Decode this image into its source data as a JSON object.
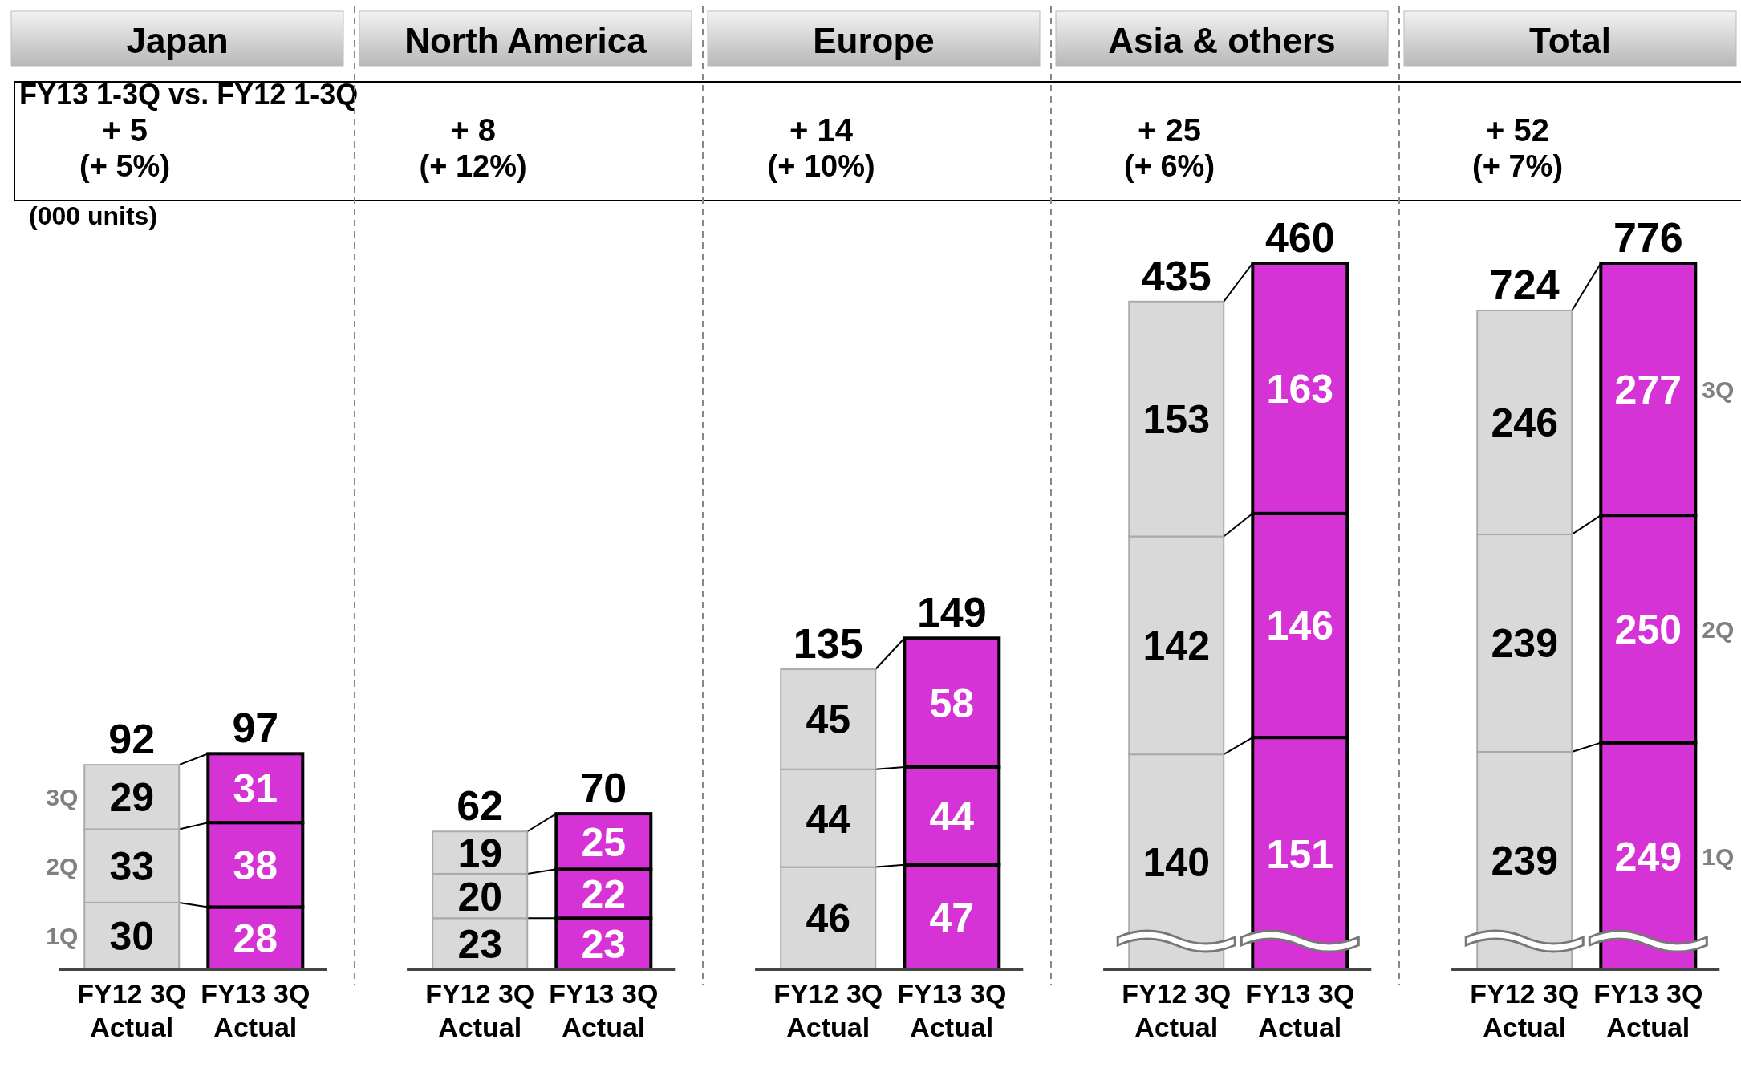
{
  "chart_data": [
    {
      "type": "bar",
      "stacked": true,
      "data_labels": true,
      "title": "Japan",
      "subtitle": "+ 5",
      "annotations": [
        "(+ 5%)",
        "FY13 1-3Q vs. FY12 1-3Q",
        "(000 units)"
      ],
      "categories": [
        "FY12 3Q\nActual",
        "FY13 3Q\nActual"
      ],
      "totals": [
        "92",
        "97"
      ],
      "series": [
        {
          "name": "1Q",
          "colors": [
            "#d9d9d9",
            "#d633d6"
          ],
          "values": [
            30,
            28
          ]
        },
        {
          "name": "2Q",
          "colors": [
            "#d9d9d9",
            "#d633d6"
          ],
          "values": [
            33,
            38
          ]
        },
        {
          "name": "3Q",
          "colors": [
            "#d9d9d9",
            "#d633d6"
          ],
          "values": [
            29,
            31
          ]
        }
      ]
    },
    {
      "type": "bar",
      "stacked": true,
      "data_labels": true,
      "title": "North America",
      "subtitle": "+ 8",
      "annotations": [
        "(+ 12%)"
      ],
      "categories": [
        "FY12 3Q\nActual",
        "FY13 3Q\nActual"
      ],
      "totals": [
        "62",
        "70"
      ],
      "series": [
        {
          "colors": [
            "#d9d9d9",
            "#d633d6"
          ],
          "values": [
            23,
            23
          ]
        },
        {
          "colors": [
            "#d9d9d9",
            "#d633d6"
          ],
          "values": [
            20,
            22
          ]
        },
        {
          "colors": [
            "#d9d9d9",
            "#d633d6"
          ],
          "values": [
            19,
            25
          ]
        }
      ]
    },
    {
      "type": "bar",
      "stacked": true,
      "data_labels": true,
      "title": "Europe",
      "subtitle": "+ 14",
      "annotations": [
        "(+ 10%)"
      ],
      "categories": [
        "FY12 3Q\nActual",
        "FY13 3Q\nActual"
      ],
      "totals": [
        "135",
        "149"
      ],
      "series": [
        {
          "colors": [
            "#d9d9d9",
            "#d633d6"
          ],
          "values": [
            46,
            47
          ]
        },
        {
          "colors": [
            "#d9d9d9",
            "#d633d6"
          ],
          "values": [
            44,
            44
          ]
        },
        {
          "colors": [
            "#d9d9d9",
            "#d633d6"
          ],
          "values": [
            45,
            58
          ]
        }
      ]
    },
    {
      "type": "bar",
      "stacked": true,
      "data_labels": true,
      "title": "Asia & others",
      "subtitle": "+ 25",
      "annotations": [
        "(+ 6%)"
      ],
      "categories": [
        "FY12 3Q\nActual",
        "FY13 3Q\nActual"
      ],
      "totals": [
        "435",
        "460"
      ],
      "series": [
        {
          "colors": [
            "#d9d9d9",
            "#d633d6"
          ],
          "values": [
            140,
            151
          ]
        },
        {
          "colors": [
            "#d9d9d9",
            "#d633d6"
          ],
          "values": [
            142,
            146
          ]
        },
        {
          "colors": [
            "#d9d9d9",
            "#d633d6"
          ],
          "values": [
            153,
            163
          ]
        }
      ]
    },
    {
      "type": "bar",
      "stacked": true,
      "data_labels": true,
      "title": "Total",
      "subtitle": "+ 52",
      "annotations": [
        "(+ 7%)"
      ],
      "categories": [
        "FY12 3Q\nActual",
        "FY13 3Q\nActual"
      ],
      "totals": [
        "724",
        "776"
      ],
      "series": [
        {
          "name": "1Q",
          "colors": [
            "#d9d9d9",
            "#d633d6"
          ],
          "values": [
            239,
            249
          ]
        },
        {
          "name": "2Q",
          "colors": [
            "#d9d9d9",
            "#d633d6"
          ],
          "values": [
            239,
            250
          ]
        },
        {
          "name": "3Q",
          "colors": [
            "#d9d9d9",
            "#d633d6"
          ],
          "values": [
            246,
            277
          ]
        }
      ]
    }
  ]
}
